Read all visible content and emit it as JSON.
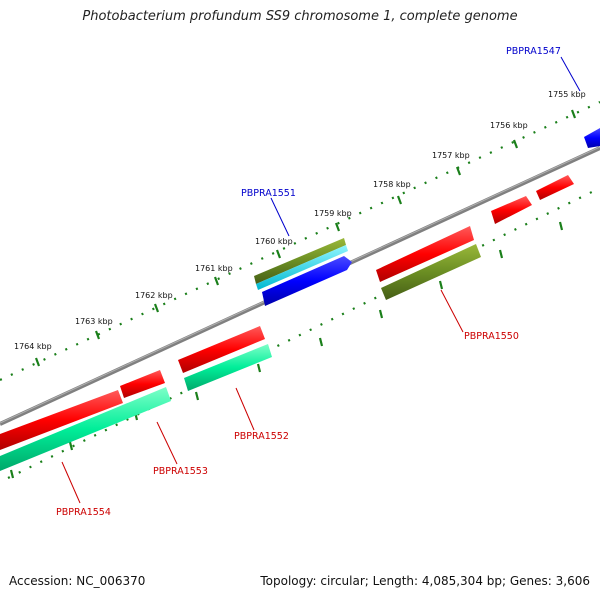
{
  "title": "Photobacterium profundum SS9 chromosome 1, complete genome",
  "accession": "Accession: NC_006370",
  "topology": "Topology: circular; Length: 4,085,304 bp; Genes: 3,606",
  "scale_labels": [
    "1755 kbp",
    "1756 kbp",
    "1757 kbp",
    "1758 kbp",
    "1759 kbp",
    "1760 kbp",
    "1761 kbp",
    "1762 kbp",
    "1763 kbp",
    "1764 kbp"
  ],
  "gene_labels": [
    "PBPRA1547",
    "PBPRA1551",
    "PBPRA1550",
    "PBPRA1552",
    "PBPRA1553",
    "PBPRA1554"
  ],
  "colors": {
    "backbone": "#808080",
    "tick": "#1a7f1a",
    "forward_label": "#0000cc",
    "reverse_label": "#cc0000",
    "red": "#ff0000",
    "blue": "#0000ff",
    "olive": "#6b8e23",
    "cyan": "#00e5ee",
    "teal": "#00ee99"
  }
}
